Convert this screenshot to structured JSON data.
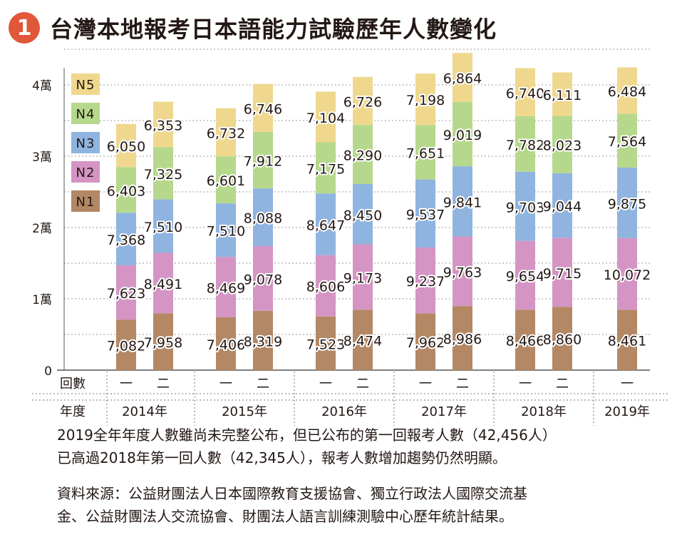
{
  "badge": "1",
  "title": "台灣本地報考日本語能力試驗歷年人數變化",
  "colors": {
    "N1": "#b48864",
    "N2": "#d495c4",
    "N3": "#8fb4e0",
    "N4": "#b6d88c",
    "N5": "#efd88e"
  },
  "row_labels": {
    "sessions": "回數",
    "year": "年度"
  },
  "note": [
    "2019全年年度人數雖尚未完整公布，但已公布的第一回報考人數（42,456人）",
    "已高過2018年第一回人數（42,345人），報考人數增加趨勢仍然明顯。"
  ],
  "source": [
    "資料來源：公益財團法人日本國際教育支援協會、獨立行政法人國際交流基",
    "金、公益財團法人交流協會、財團法人語言訓練測驗中心歷年統計結果。"
  ],
  "chart_data": {
    "type": "bar",
    "stacked": true,
    "title": "台灣本地報考日本語能力試驗歷年人數變化",
    "y_ticks": [
      "0",
      "1萬",
      "2萬",
      "3萬",
      "4萬"
    ],
    "ylim": [
      0,
      45000
    ],
    "grid": true,
    "legend": [
      "N5",
      "N4",
      "N3",
      "N2",
      "N1"
    ],
    "legend_position": "top-left",
    "groups": [
      {
        "year": "2014年",
        "sessions": [
          "一",
          "二"
        ]
      },
      {
        "year": "2015年",
        "sessions": [
          "一",
          "二"
        ]
      },
      {
        "year": "2016年",
        "sessions": [
          "一",
          "二"
        ]
      },
      {
        "year": "2017年",
        "sessions": [
          "一",
          "二"
        ]
      },
      {
        "year": "2018年",
        "sessions": [
          "一",
          "二"
        ]
      },
      {
        "year": "2019年",
        "sessions": [
          "一"
        ]
      }
    ],
    "series": [
      {
        "name": "N1",
        "values": [
          7082,
          7958,
          7406,
          8319,
          7523,
          8474,
          7962,
          8986,
          8466,
          8860,
          8461
        ]
      },
      {
        "name": "N2",
        "values": [
          7623,
          8491,
          8469,
          9078,
          8606,
          9173,
          9237,
          9763,
          9654,
          9715,
          10072
        ]
      },
      {
        "name": "N3",
        "values": [
          7368,
          7510,
          7510,
          8088,
          8647,
          8450,
          9537,
          9841,
          9703,
          9044,
          9875
        ]
      },
      {
        "name": "N4",
        "values": [
          6403,
          7325,
          6601,
          7912,
          7175,
          8290,
          7651,
          9019,
          7782,
          8023,
          7564
        ]
      },
      {
        "name": "N5",
        "values": [
          6050,
          6353,
          6732,
          6746,
          7104,
          6726,
          7198,
          6864,
          6740,
          6111,
          6484
        ]
      }
    ]
  }
}
